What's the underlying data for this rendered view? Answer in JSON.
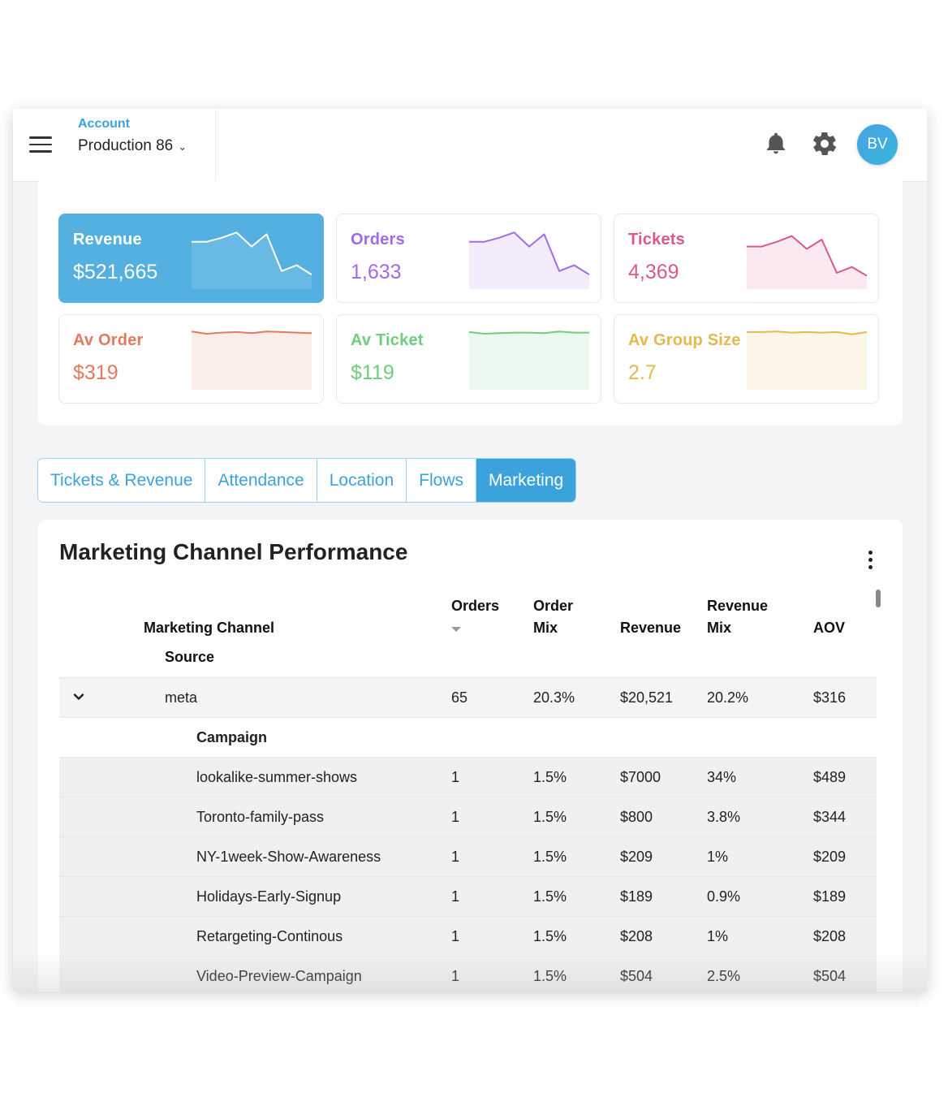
{
  "header": {
    "account_label": "Account",
    "account_value": "Production 86",
    "avatar_initials": "BV",
    "icons": [
      "hamburger-menu-icon",
      "chevron-down-icon",
      "bell-icon",
      "gear-icon"
    ]
  },
  "kpis": [
    {
      "label": "Revenue",
      "value": "$521,665",
      "color": "#ffffff",
      "trend": [
        0.78,
        0.78,
        0.85,
        0.94,
        0.7,
        0.91,
        0.28,
        0.38,
        0.22
      ]
    },
    {
      "label": "Orders",
      "value": "1,633",
      "color": "#a06be8",
      "trend": [
        0.78,
        0.78,
        0.85,
        0.94,
        0.7,
        0.91,
        0.28,
        0.38,
        0.22
      ]
    },
    {
      "label": "Tickets",
      "value": "4,369",
      "color": "#d9588e",
      "trend": [
        0.7,
        0.7,
        0.78,
        0.88,
        0.66,
        0.82,
        0.25,
        0.35,
        0.2
      ]
    },
    {
      "label": "Av Order",
      "value": "$319",
      "color": "#e27a5f",
      "trend": [
        0.97,
        0.93,
        0.95,
        0.96,
        0.94,
        0.97,
        0.96,
        0.95,
        0.94
      ]
    },
    {
      "label": "Av Ticket",
      "value": "$119",
      "color": "#6fce7e",
      "trend": [
        0.96,
        0.93,
        0.94,
        0.95,
        0.95,
        0.94,
        0.97,
        0.95,
        0.95
      ]
    },
    {
      "label": "Av Group Size",
      "value": "2.7",
      "color": "#e6b94f",
      "trend": [
        0.96,
        0.96,
        0.97,
        0.95,
        0.96,
        0.95,
        0.96,
        0.92,
        0.96
      ]
    }
  ],
  "tabs": [
    "Tickets & Revenue",
    "Attendance",
    "Location",
    "Flows",
    "Marketing"
  ],
  "active_tab": "Marketing",
  "table": {
    "title": "Marketing Channel Performance",
    "headers": {
      "channel": "Marketing Channel",
      "source": "Source",
      "orders": "Orders",
      "order_mix_1": "Order",
      "order_mix_2": "Mix",
      "revenue": "Revenue",
      "revenue_mix_1": "Revenue",
      "revenue_mix_2": "Mix",
      "aov": "AOV"
    },
    "meta_row": {
      "source": "meta",
      "orders": "65",
      "order_mix": "20.3%",
      "revenue": "$20,521",
      "revenue_mix": "20.2%",
      "aov": "$316"
    },
    "campaign_label": "Campaign",
    "campaigns": [
      {
        "name": "lookalike-summer-shows",
        "orders": "1",
        "order_mix": "1.5%",
        "revenue": "$7000",
        "revenue_mix": "34%",
        "aov": "$489"
      },
      {
        "name": "Toronto-family-pass",
        "orders": "1",
        "order_mix": "1.5%",
        "revenue": "$800",
        "revenue_mix": "3.8%",
        "aov": "$344"
      },
      {
        "name": "NY-1week-Show-Awareness",
        "orders": "1",
        "order_mix": "1.5%",
        "revenue": "$209",
        "revenue_mix": "1%",
        "aov": "$209"
      },
      {
        "name": "Holidays-Early-Signup",
        "orders": "1",
        "order_mix": "1.5%",
        "revenue": "$189",
        "revenue_mix": "0.9%",
        "aov": "$189"
      },
      {
        "name": "Retargeting-Continous",
        "orders": "1",
        "order_mix": "1.5%",
        "revenue": "$208",
        "revenue_mix": "1%",
        "aov": "$208"
      },
      {
        "name": "Video-Preview-Campaign",
        "orders": "1",
        "order_mix": "1.5%",
        "revenue": "$504",
        "revenue_mix": "2.5%",
        "aov": "$504"
      }
    ]
  }
}
